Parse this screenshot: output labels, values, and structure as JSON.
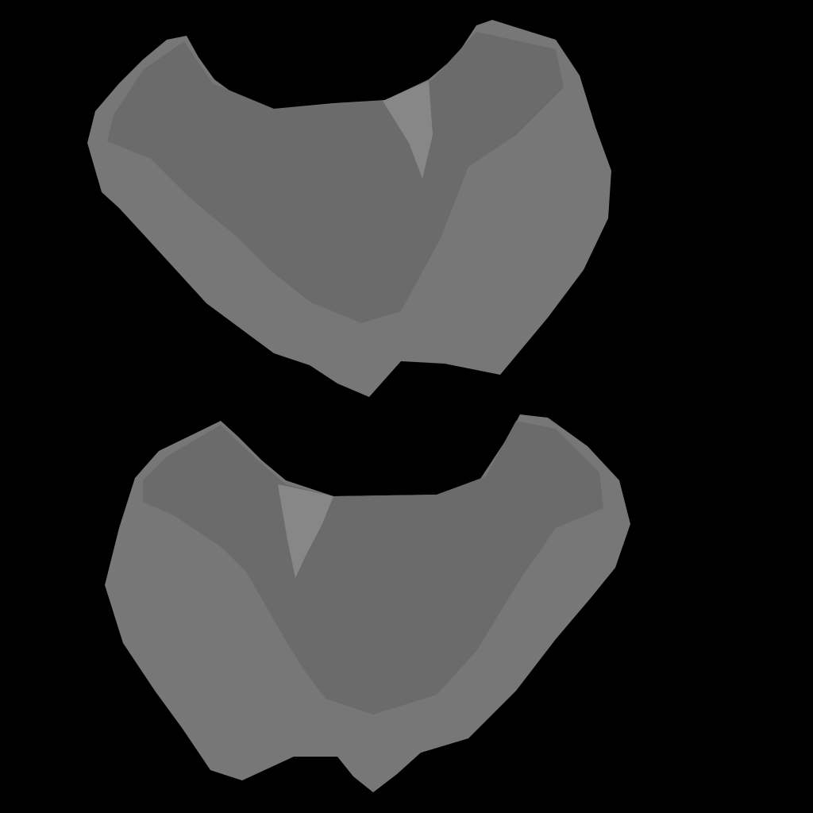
{
  "colors": {
    "background": "#000000",
    "outer_region": "#777777",
    "inner_region": "#6b6b6b",
    "highlight_region": "#878787"
  },
  "regions": [
    {
      "name": "upper-shape",
      "label": ""
    },
    {
      "name": "lower-shape",
      "label": ""
    }
  ]
}
